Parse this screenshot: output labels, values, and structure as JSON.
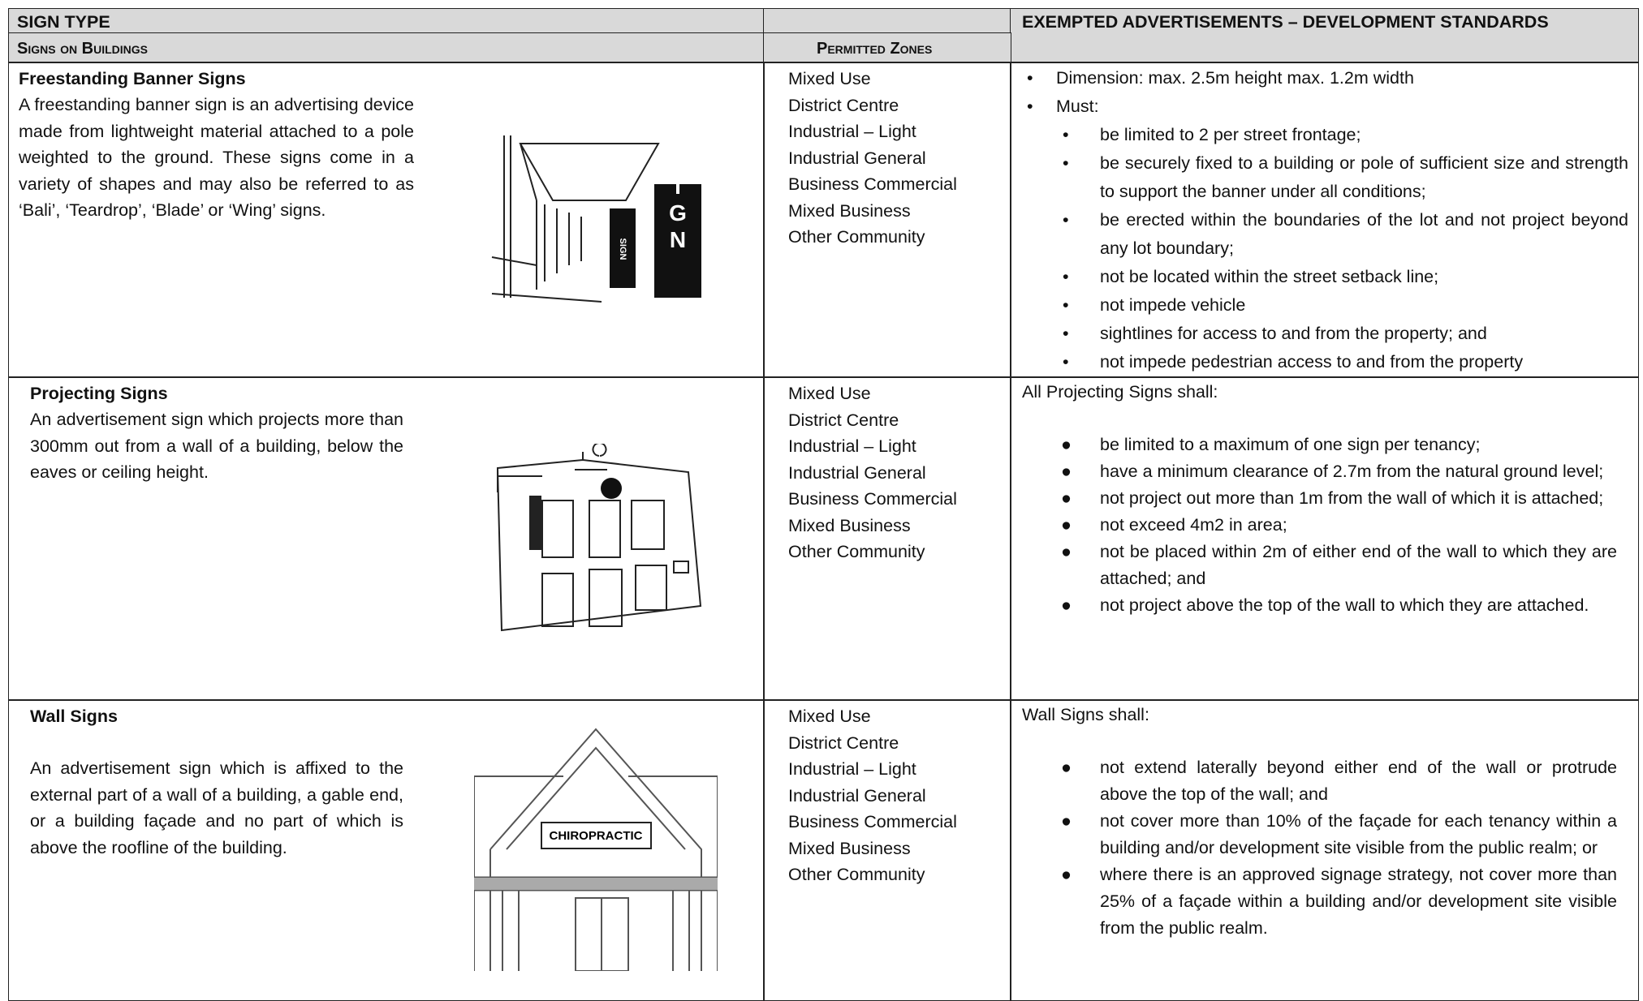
{
  "header": {
    "sign_type": "SIGN TYPE",
    "signs_on_buildings": "Signs on Buildings",
    "permitted_zones": "Permitted Zones",
    "standards": "EXEMPTED ADVERTISEMENTS – DEVELOPMENT STANDARDS"
  },
  "rows": [
    {
      "title": "Freestanding Banner Signs",
      "description": "A freestanding banner sign is an advertising device made from lightweight material attached to a pole weighted to the ground. These signs come in a variety of shapes and may also be referred to as ‘Bali’, ‘Teardrop’, ‘Blade’ or ‘Wing’ signs.",
      "illustration_text": "SIGN",
      "zones": [
        "Mixed Use",
        "District Centre",
        "Industrial – Light",
        "Industrial General",
        "Business Commercial",
        "Mixed Business",
        "Other Community"
      ],
      "standards": {
        "items": [
          "Dimension: max. 2.5m height max. 1.2m width",
          "Must:"
        ],
        "sub_items": [
          "be limited to 2 per street frontage;",
          "be securely fixed to a building or pole of sufficient size and strength to support the banner under all conditions;",
          "be erected within the boundaries of the lot and not project beyond any lot boundary;",
          "not be located within the street setback line;",
          "not impede vehicle",
          "sightlines for access to and from the property;  and",
          "not impede pedestrian access to and from the property"
        ]
      }
    },
    {
      "title": "Projecting Signs",
      "description": "An advertisement sign which projects more than 300mm out from a wall of a building, below the eaves or ceiling height.",
      "zones": [
        "Mixed Use",
        "District Centre",
        "Industrial – Light",
        "Industrial General",
        "Business Commercial",
        "Mixed Business",
        "Other Community"
      ],
      "standards": {
        "intro": "All Projecting Signs shall:",
        "items": [
          "be limited to a maximum of one sign per tenancy;",
          "have a minimum clearance of 2.7m from the natural ground level;",
          "not project out more than 1m from the wall of which it is attached;",
          "not exceed 4m2 in area;",
          "not be placed within 2m of either end of the wall to which they are attached; and",
          "not project above the top of the wall to which they are attached."
        ]
      }
    },
    {
      "title": "Wall Signs",
      "description": "An advertisement sign which is affixed to the external part of a wall of a building, a gable end, or a building façade and no part of which is above the roofline of the building.",
      "illustration_text": "CHIROPRACTIC",
      "zones": [
        "Mixed Use",
        "District Centre",
        "Industrial – Light",
        "Industrial General",
        "Business Commercial",
        "Mixed Business",
        "Other Community"
      ],
      "standards": {
        "intro": "Wall Signs shall:",
        "items": [
          "not extend laterally beyond either end of the wall or protrude above the top of the wall; and",
          "not cover more than 10% of the façade for each tenancy within a building and/or development site visible from the public realm; or",
          "where there is an approved signage strategy, not cover more than 25% of a façade within a building and/or development site visible from the public realm."
        ]
      }
    }
  ]
}
